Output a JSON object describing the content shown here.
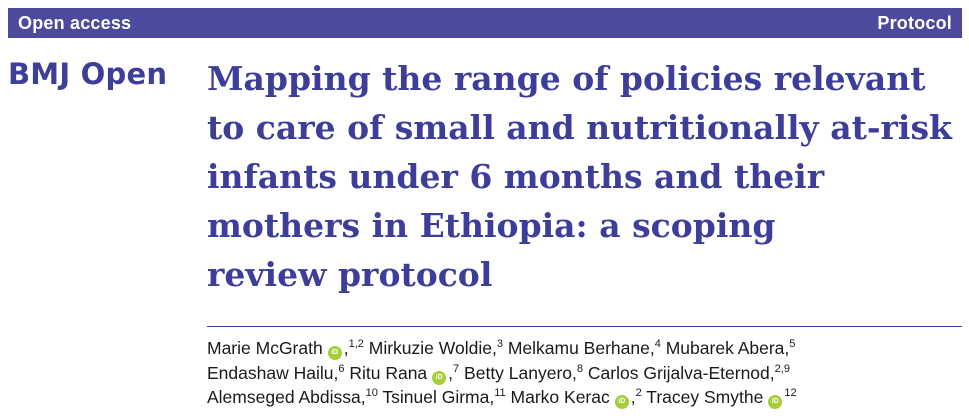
{
  "colors": {
    "brand": "#3d3d9a",
    "bar": "#4b4a9c",
    "orcid": "#a6ce39"
  },
  "header": {
    "access_label": "Open access",
    "type_label": "Protocol"
  },
  "journal": {
    "name": "BMJ Open"
  },
  "title_lines": [
    "Mapping the range of policies relevant",
    "to care of small and nutritionally at-risk",
    "infants under 6 months and their",
    "mothers in Ethiopia: a scoping",
    "review protocol"
  ],
  "authors": [
    {
      "name": "Marie McGrath",
      "orcid": true,
      "affil": "1,2"
    },
    {
      "name": "Mirkuzie Woldie",
      "orcid": false,
      "affil": "3"
    },
    {
      "name": "Melkamu Berhane",
      "orcid": false,
      "affil": "4"
    },
    {
      "name": "Mubarek Abera",
      "orcid": false,
      "affil": "5"
    },
    {
      "name": "Endashaw Hailu",
      "orcid": false,
      "affil": "6"
    },
    {
      "name": "Ritu Rana",
      "orcid": true,
      "affil": "7"
    },
    {
      "name": "Betty Lanyero",
      "orcid": false,
      "affil": "8"
    },
    {
      "name": "Carlos Grijalva-Eternod",
      "orcid": false,
      "affil": "2,9"
    },
    {
      "name": "Alemseged Abdissa",
      "orcid": false,
      "affil": "10"
    },
    {
      "name": "Tsinuel Girma",
      "orcid": false,
      "affil": "11"
    },
    {
      "name": "Marko Kerac",
      "orcid": true,
      "affil": "2"
    },
    {
      "name": "Tracey Smythe",
      "orcid": true,
      "affil": "12"
    }
  ],
  "icons": {
    "orcid": "orcid-icon",
    "orcid_text": "iD"
  }
}
